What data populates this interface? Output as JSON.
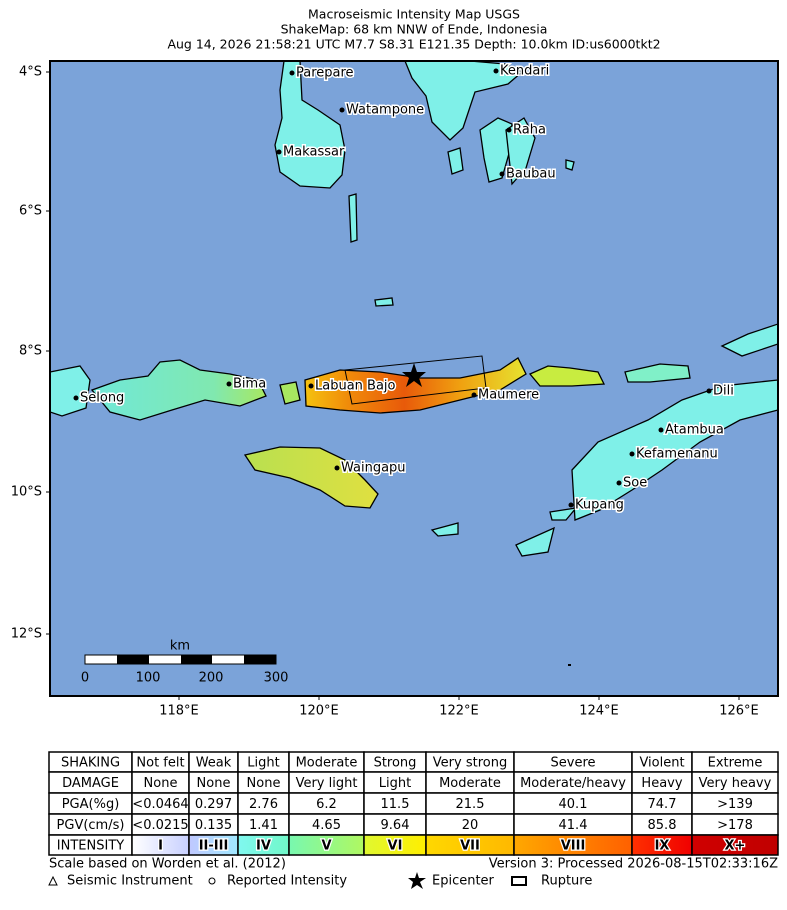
{
  "header": {
    "lines": [
      "Macroseismic Intensity Map USGS",
      "ShakeMap: 68 km NNW of Ende, Indonesia",
      "Aug 14, 2026 21:58:21 UTC M7.7 S8.31 E121.35 Depth: 10.0km ID:us6000tkt2"
    ]
  },
  "map": {
    "lat_labels": [
      "4°S",
      "6°S",
      "8°S",
      "10°S",
      "12°S"
    ],
    "lon_labels": [
      "118°E",
      "120°E",
      "122°E",
      "124°E",
      "126°E"
    ],
    "cities": [
      "Parepare",
      "Watampone",
      "Makassar",
      "Kendari",
      "Raha",
      "Baubau",
      "Bima",
      "Labuan Bajo",
      "Maumere",
      "Selong",
      "Waingapu",
      "Dili",
      "Atambua",
      "Kefamenanu",
      "Soe",
      "Kupang"
    ],
    "scale_bar": {
      "unit": "km",
      "ticks": [
        "0",
        "100",
        "200",
        "300"
      ]
    }
  },
  "table": {
    "rows": [
      [
        "SHAKING",
        "Not felt",
        "Weak",
        "Light",
        "Moderate",
        "Strong",
        "Very strong",
        "Severe",
        "Violent",
        "Extreme"
      ],
      [
        "DAMAGE",
        "None",
        "None",
        "None",
        "Very light",
        "Light",
        "Moderate",
        "Moderate/heavy",
        "Heavy",
        "Very heavy"
      ],
      [
        "PGA(%g)",
        "<0.0464",
        "0.297",
        "2.76",
        "6.2",
        "11.5",
        "21.5",
        "40.1",
        "74.7",
        ">139"
      ],
      [
        "PGV(cm/s)",
        "<0.0215",
        "0.135",
        "1.41",
        "4.65",
        "9.64",
        "20",
        "41.4",
        "85.8",
        ">178"
      ],
      [
        "INTENSITY",
        "I",
        "II-III",
        "IV",
        "V",
        "VI",
        "VII",
        "VIII",
        "IX",
        "X+"
      ]
    ]
  },
  "footer": {
    "scale_note": "Scale based on Worden et al. (2012)",
    "version": "Version 3: Processed 2026-08-15T02:33:16Z",
    "legend": [
      "Seismic Instrument",
      "Reported Intensity",
      "Epicenter",
      "Rupture"
    ]
  }
}
